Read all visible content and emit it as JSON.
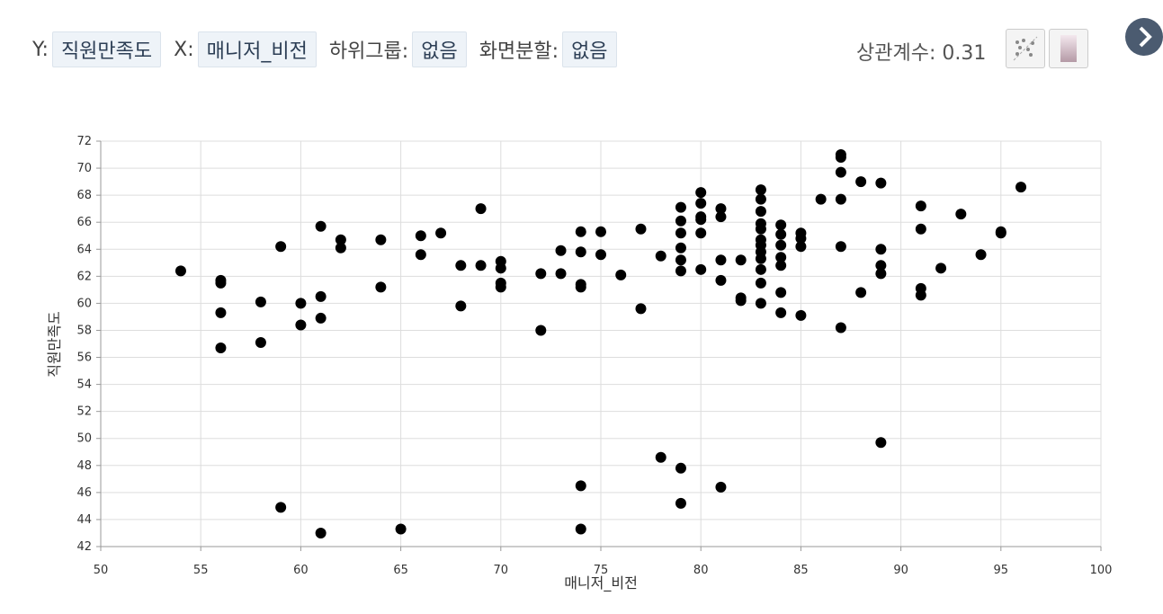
{
  "toolbar": {
    "y_label": "Y:",
    "y_value": "직원만족도",
    "x_label": "X:",
    "x_value": "매니저_비전",
    "subgroup_label": "하위그룹:",
    "subgroup_value": "없음",
    "split_label": "화면분할:",
    "split_value": "없음",
    "correlation": "상관계수: 0.31"
  },
  "chart_data": {
    "type": "scatter",
    "x_label": "매니저_비전",
    "y_label": "직원만족도",
    "color": "#000000",
    "grid": true,
    "xlim": [
      50,
      100
    ],
    "xticks": [
      50,
      55,
      60,
      65,
      70,
      75,
      80,
      85,
      90,
      95,
      100
    ],
    "ylim": [
      42,
      72
    ],
    "yticks": [
      42,
      44,
      46,
      48,
      50,
      52,
      54,
      56,
      58,
      60,
      62,
      64,
      66,
      68,
      70,
      72
    ],
    "x": [
      54,
      56,
      56,
      56,
      56,
      58,
      58,
      59,
      59,
      60,
      60,
      61,
      61,
      61,
      61,
      62,
      62,
      64,
      64,
      65,
      66,
      66,
      67,
      68,
      68,
      69,
      69,
      70,
      70,
      70,
      70,
      72,
      72,
      73,
      73,
      74,
      74,
      74,
      74,
      74,
      74,
      75,
      75,
      76,
      77,
      77,
      78,
      78,
      79,
      79,
      79,
      79,
      79,
      79,
      79,
      79,
      80,
      80,
      80,
      80,
      80,
      80,
      81,
      81,
      81,
      81,
      81,
      82,
      82,
      82,
      83,
      83,
      83,
      83,
      83,
      83,
      83,
      83,
      83,
      83,
      83,
      83,
      84,
      84,
      84,
      84,
      84,
      84,
      84,
      85,
      85,
      85,
      85,
      86,
      87,
      87,
      87,
      87,
      87,
      87,
      88,
      88,
      89,
      89,
      89,
      89,
      89,
      91,
      91,
      91,
      91,
      92,
      93,
      94,
      95,
      95,
      96
    ],
    "values": [
      62.4,
      61.7,
      61.5,
      59.3,
      56.7,
      60.1,
      57.1,
      64.2,
      44.9,
      60.0,
      58.4,
      65.7,
      60.5,
      58.9,
      43.0,
      64.7,
      64.1,
      64.7,
      61.2,
      43.3,
      65.0,
      63.6,
      65.2,
      62.8,
      59.8,
      67.0,
      62.8,
      63.1,
      62.6,
      61.5,
      61.2,
      62.2,
      58.0,
      63.9,
      62.2,
      65.3,
      63.8,
      61.4,
      61.2,
      46.5,
      43.3,
      65.3,
      63.6,
      62.1,
      65.5,
      59.6,
      63.5,
      48.6,
      67.1,
      66.1,
      65.2,
      64.1,
      63.2,
      62.4,
      47.8,
      45.2,
      68.2,
      67.4,
      66.4,
      66.2,
      65.2,
      62.5,
      67.0,
      66.4,
      63.2,
      61.7,
      46.4,
      63.2,
      60.4,
      60.2,
      68.4,
      67.7,
      66.8,
      65.9,
      65.5,
      64.7,
      64.3,
      63.8,
      63.3,
      62.5,
      61.5,
      60.0,
      65.8,
      65.1,
      64.3,
      63.4,
      62.8,
      60.8,
      59.3,
      65.2,
      64.8,
      64.2,
      59.1,
      67.7,
      71.0,
      70.8,
      69.7,
      67.7,
      64.2,
      58.2,
      69.0,
      60.8,
      68.9,
      64.0,
      62.8,
      62.2,
      49.7,
      67.2,
      65.5,
      61.1,
      60.6,
      62.6,
      66.6,
      63.6,
      65.3,
      65.2,
      68.6
    ]
  }
}
